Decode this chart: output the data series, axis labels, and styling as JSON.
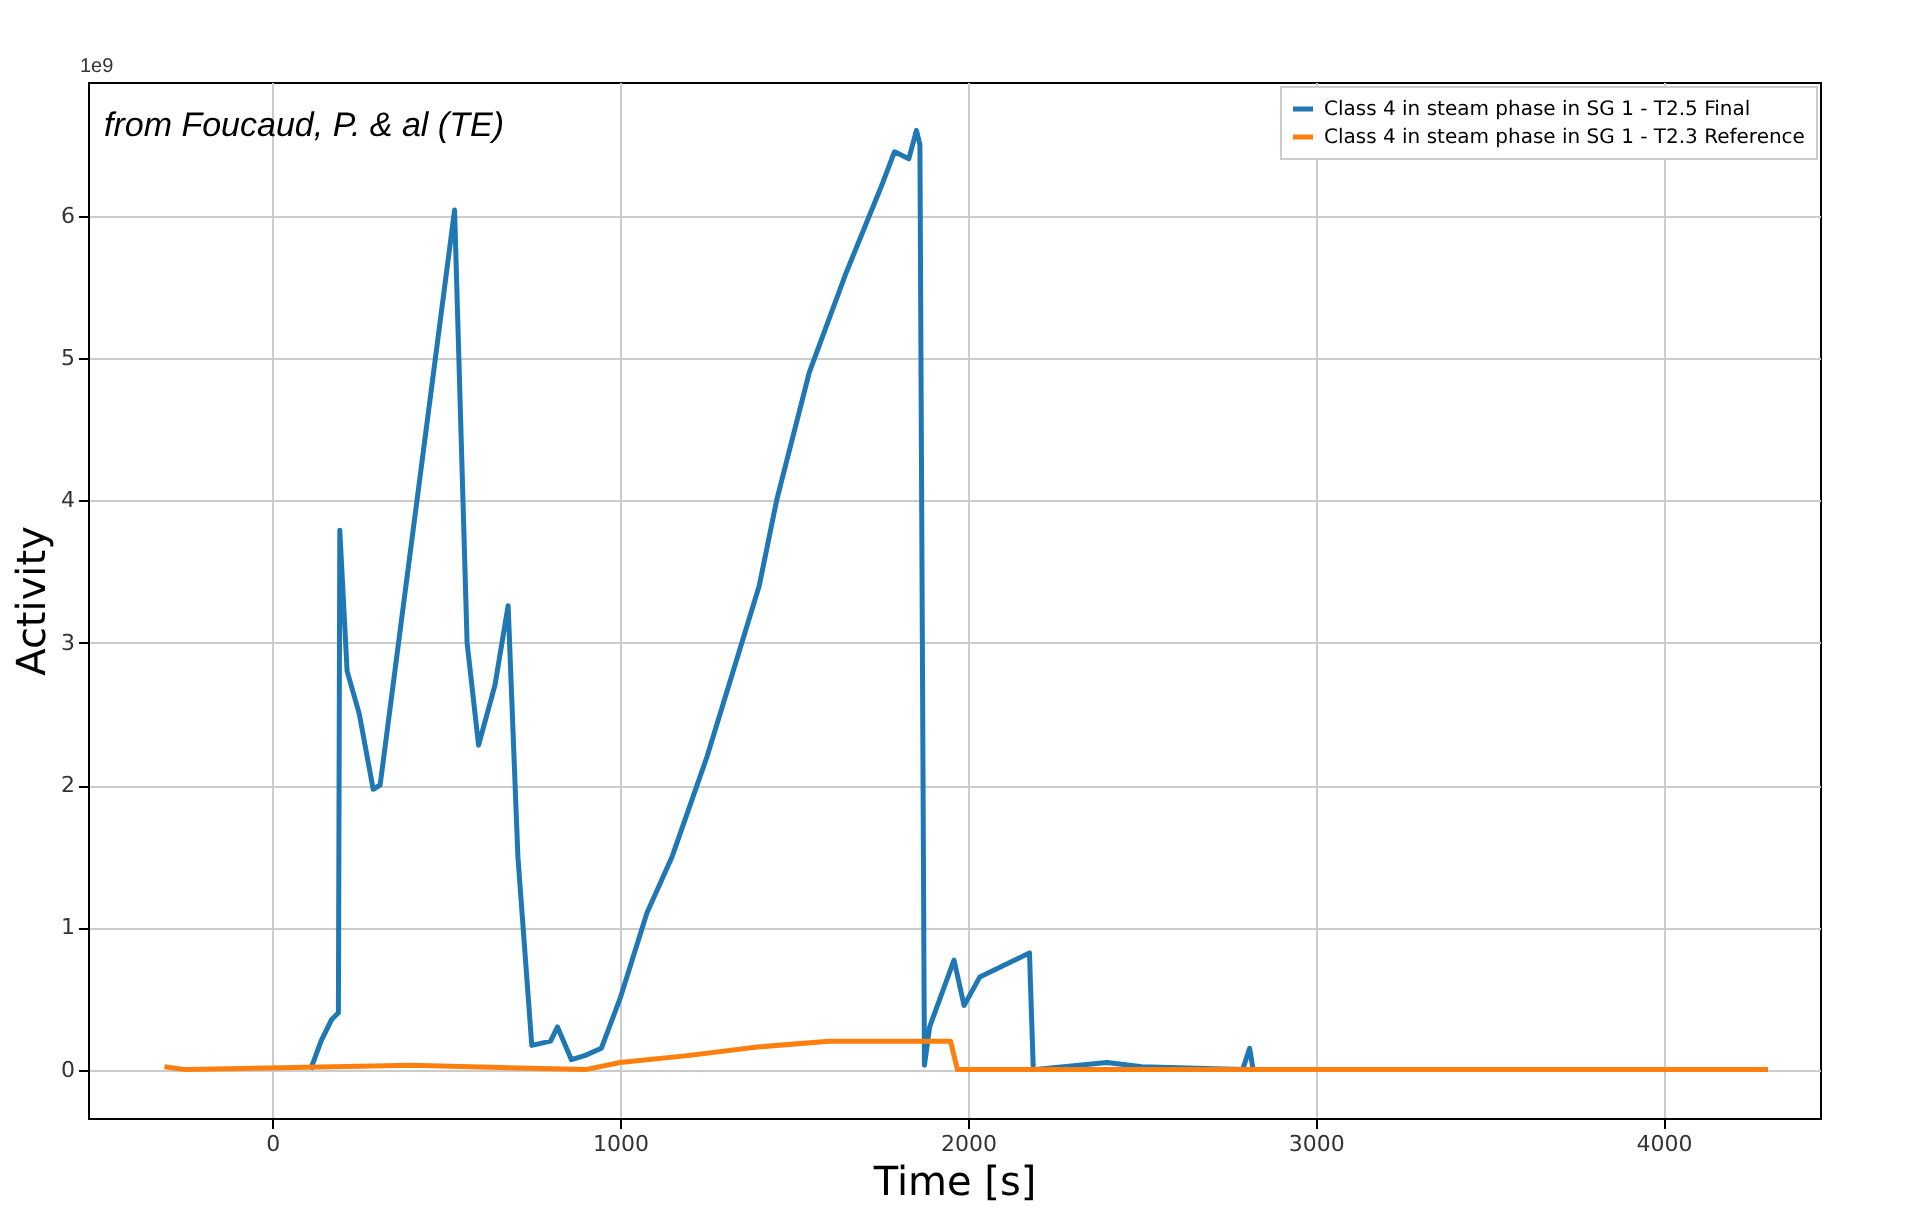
{
  "chart_data": {
    "type": "line",
    "xlabel": "Time [s]",
    "ylabel": "Activity",
    "annotations": [
      "from Foucaud, P. & al (TE)",
      "1e9"
    ],
    "xlim": [
      -530,
      4450
    ],
    "ylim": [
      -0.34,
      6.94
    ],
    "xticks": [
      0,
      1000,
      2000,
      3000,
      4000
    ],
    "yticks": [
      0,
      1,
      2,
      3,
      4,
      5,
      6
    ],
    "grid": true,
    "legend": "top right",
    "marker": "none",
    "line_style": "solid",
    "series": [
      {
        "name": "Class 4 in steam phase in SG 1 - T2.5 Final",
        "color": "#1f77b4",
        "x": [
          110,
          140,
          170,
          190,
          194,
          215,
          250,
          290,
          310,
          524,
          560,
          593,
          640,
          678,
          706,
          746,
          800,
          820,
          860,
          900,
          946,
          1000,
          1077,
          1150,
          1250,
          1350,
          1400,
          1450,
          1544,
          1650,
          1750,
          1789,
          1830,
          1852,
          1862,
          1875,
          1890,
          1960,
          1989,
          2034,
          2177,
          2188,
          2400,
          2500,
          2790,
          2810,
          2820,
          4300
        ],
        "values": [
          0,
          0.2,
          0.35,
          0.4,
          3.79,
          2.8,
          2.5,
          1.97,
          2.0,
          6.04,
          3.0,
          2.28,
          2.7,
          3.26,
          1.5,
          0.17,
          0.2,
          0.3,
          0.07,
          0.1,
          0.15,
          0.5,
          1.1,
          1.5,
          2.2,
          3.0,
          3.4,
          4.0,
          4.9,
          5.6,
          6.2,
          6.45,
          6.4,
          6.6,
          6.5,
          0.03,
          0.3,
          0.77,
          0.45,
          0.65,
          0.82,
          0,
          0.05,
          0.02,
          0,
          0.15,
          0,
          0
        ]
      },
      {
        "name": "Class 4 in steam phase in SG 1 - T2.3 Reference",
        "color": "#ff7f0e",
        "x": [
          -310,
          -250,
          400,
          900,
          1000,
          1200,
          1400,
          1600,
          1950,
          1970,
          4300
        ],
        "values": [
          0.02,
          0,
          0.03,
          0,
          0.05,
          0.1,
          0.16,
          0.2,
          0.2,
          0,
          0
        ]
      }
    ]
  }
}
